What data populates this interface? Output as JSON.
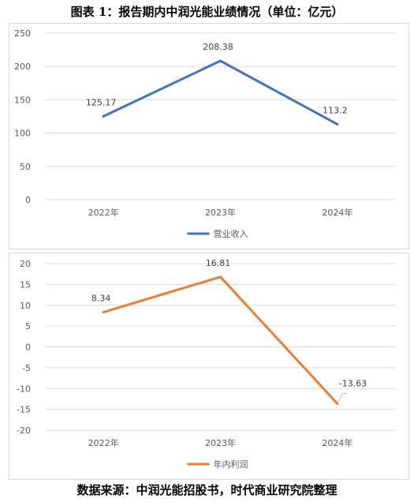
{
  "title": "图表 1：报告期内中润光能业绩情况（单位：亿元）",
  "source": "数据来源：中润光能招股书，时代商业研究院整理",
  "chart_data": [
    {
      "type": "line",
      "categories": [
        "2022年",
        "2023年",
        "2024年"
      ],
      "series": [
        {
          "name": "营业收入",
          "values": [
            125.17,
            208.38,
            113.2
          ],
          "color": "#4472C4"
        }
      ],
      "data_labels": [
        "125.17",
        "208.38",
        "113.2"
      ],
      "ylim": [
        0,
        250
      ],
      "yticks": [
        0,
        50,
        100,
        150,
        200,
        250
      ],
      "grid": true,
      "legend": "bottom"
    },
    {
      "type": "line",
      "categories": [
        "2022年",
        "2023年",
        "2024年"
      ],
      "series": [
        {
          "name": "年内利润",
          "values": [
            8.34,
            16.81,
            -13.63
          ],
          "color": "#ED7D31"
        }
      ],
      "data_labels": [
        "8.34",
        "16.81",
        "-13.63"
      ],
      "ylim": [
        -20,
        20
      ],
      "yticks": [
        -20,
        -15,
        -10,
        -5,
        0,
        5,
        10,
        15,
        20
      ],
      "grid": true,
      "legend": "bottom"
    }
  ]
}
